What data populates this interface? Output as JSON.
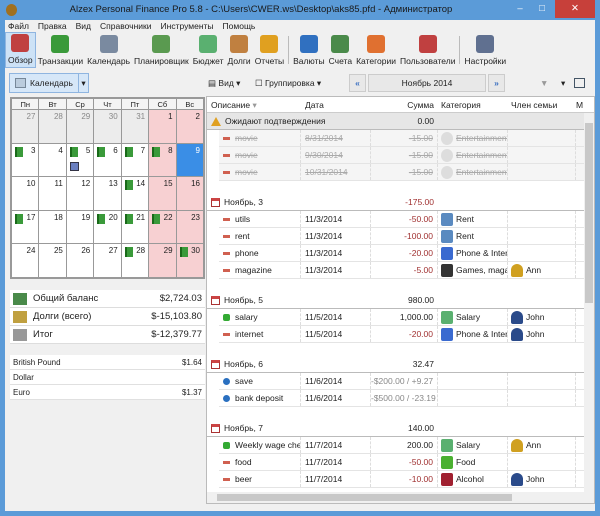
{
  "window": {
    "title": "Alzex Personal Finance Pro 5.8 - C:\\Users\\CWER.ws\\Desktop\\aks85.pfd - Администратор",
    "minimize": "–",
    "maximize": "□",
    "close": "✕"
  },
  "menu": [
    "Файл",
    "Правка",
    "Вид",
    "Справочники",
    "Инструменты",
    "Помощь"
  ],
  "toolbar": [
    {
      "label": "Обзор",
      "icon": "overview-icon",
      "color": "#c04040",
      "active": true
    },
    {
      "label": "Транзакции",
      "icon": "book-icon",
      "color": "#3a9a3a"
    },
    {
      "label": "Календарь",
      "icon": "calendar-icon",
      "color": "#7a8aa0"
    },
    {
      "label": "Планировщик",
      "icon": "clock-icon",
      "color": "#5a9a50"
    },
    {
      "label": "Бюджет",
      "icon": "envelope-icon",
      "color": "#5ab070"
    },
    {
      "label": "Долги",
      "icon": "debt-icon",
      "color": "#c08040"
    },
    {
      "label": "Отчеты",
      "icon": "chart-icon",
      "color": "#e0a020",
      "sep": true
    },
    {
      "label": "Валюты",
      "icon": "currency-icon",
      "color": "#3070c0"
    },
    {
      "label": "Счета",
      "icon": "money-icon",
      "color": "#4a8a4a"
    },
    {
      "label": "Категории",
      "icon": "hierarchy-icon",
      "color": "#e07030"
    },
    {
      "label": "Пользователи",
      "icon": "users-icon",
      "color": "#c04040",
      "sep": true
    },
    {
      "label": "Настройки",
      "icon": "settings-icon",
      "color": "#607090"
    }
  ],
  "subtoolbar": {
    "calendar": "Календарь",
    "view": "Вид",
    "grouping": "Группировка",
    "period": "Ноябрь 2014",
    "prev": "«",
    "next": "»"
  },
  "calendar": {
    "weekdays": [
      "Пн",
      "Вт",
      "Ср",
      "Чт",
      "Пт",
      "Сб",
      "Вс"
    ],
    "weeks": [
      [
        {
          "d": "27",
          "o": 1
        },
        {
          "d": "28",
          "o": 1
        },
        {
          "d": "29",
          "o": 1
        },
        {
          "d": "30",
          "o": 1
        },
        {
          "d": "31",
          "o": 1
        },
        {
          "d": "1",
          "w": 1
        },
        {
          "d": "2",
          "w": 1
        }
      ],
      [
        {
          "d": "3",
          "b": 1
        },
        {
          "d": "4"
        },
        {
          "d": "5",
          "b": 1,
          "s": 1
        },
        {
          "d": "6",
          "b": 1
        },
        {
          "d": "7",
          "b": 1
        },
        {
          "d": "8",
          "w": 1,
          "b": 1
        },
        {
          "d": "9",
          "t": 1
        }
      ],
      [
        {
          "d": "10"
        },
        {
          "d": "11"
        },
        {
          "d": "12"
        },
        {
          "d": "13"
        },
        {
          "d": "14",
          "b": 1
        },
        {
          "d": "15",
          "w": 1
        },
        {
          "d": "16",
          "w": 1
        }
      ],
      [
        {
          "d": "17",
          "b": 1
        },
        {
          "d": "18"
        },
        {
          "d": "19"
        },
        {
          "d": "20",
          "b": 1
        },
        {
          "d": "21",
          "b": 1
        },
        {
          "d": "22",
          "w": 1,
          "b": 1
        },
        {
          "d": "23",
          "w": 1
        }
      ],
      [
        {
          "d": "24"
        },
        {
          "d": "25"
        },
        {
          "d": "26"
        },
        {
          "d": "27"
        },
        {
          "d": "28",
          "b": 1
        },
        {
          "d": "29",
          "w": 1
        },
        {
          "d": "30",
          "w": 1,
          "b": 1
        }
      ]
    ]
  },
  "balance": [
    {
      "label": "Общий баланс",
      "value": "$2,724.03",
      "icon": "money-icon",
      "color": "#4a8a4a"
    },
    {
      "label": "Долги (всего)",
      "value": "$-15,103.80",
      "icon": "debt-icon",
      "color": "#c0a040"
    },
    {
      "label": "Итог",
      "value": "$-12,379.77",
      "icon": "scales-icon",
      "color": "#999"
    }
  ],
  "currencies": [
    {
      "name": "British Pound",
      "value": "$1.64"
    },
    {
      "name": "Dollar",
      "value": ""
    },
    {
      "name": "Euro",
      "value": "$1.37"
    }
  ],
  "grid": {
    "columns": [
      "Описание",
      "Дата",
      "Сумма",
      "Категория",
      "Член семьи",
      "М"
    ],
    "groups": [
      {
        "title": "Ожидают подтверждения",
        "total": "0.00",
        "pending": true,
        "rows": [
          {
            "desc": "movie",
            "date": "8/31/2014",
            "sum": "-15.00",
            "cat": "Entertainment",
            "type": "minus"
          },
          {
            "desc": "movie",
            "date": "9/30/2014",
            "sum": "-15.00",
            "cat": "Entertainment",
            "type": "minus"
          },
          {
            "desc": "movie",
            "date": "10/31/2014",
            "sum": "-15.00",
            "cat": "Entertainment",
            "type": "minus"
          }
        ]
      },
      {
        "title": "Ноябрь, 3",
        "total": "-175.00",
        "rows": [
          {
            "desc": "utils",
            "date": "11/3/2014",
            "sum": "-50.00",
            "cat": "Rent",
            "type": "minus",
            "cc": "#5a8ac0"
          },
          {
            "desc": "rent",
            "date": "11/3/2014",
            "sum": "-100.00",
            "cat": "Rent",
            "type": "minus",
            "cc": "#5a8ac0"
          },
          {
            "desc": "phone",
            "date": "11/3/2014",
            "sum": "-20.00",
            "cat": "Phone & Internet",
            "type": "minus",
            "cc": "#3a6ad0"
          },
          {
            "desc": "magazine",
            "date": "11/3/2014",
            "sum": "-5.00",
            "cat": "Games, magazines",
            "type": "minus",
            "cc": "#333",
            "member": "Ann",
            "mc": "#d0a020"
          }
        ]
      },
      {
        "title": "Ноябрь, 5",
        "total": "980.00",
        "rows": [
          {
            "desc": "salary",
            "date": "11/5/2014",
            "sum": "1,000.00",
            "cat": "Salary",
            "type": "plus",
            "cc": "#5ab070",
            "member": "John",
            "mc": "#2a4a8a"
          },
          {
            "desc": "internet",
            "date": "11/5/2014",
            "sum": "-20.00",
            "cat": "Phone & Internet",
            "type": "minus",
            "cc": "#3a6ad0",
            "member": "John",
            "mc": "#2a4a8a"
          }
        ]
      },
      {
        "title": "Ноябрь, 6",
        "total": "32.47",
        "rows": [
          {
            "desc": "save",
            "date": "11/6/2014",
            "sum": "-$200.00 / +9.27",
            "type": "transfer"
          },
          {
            "desc": "bank deposit",
            "date": "11/6/2014",
            "sum": "-$500.00 / -23.19",
            "type": "transfer"
          }
        ]
      },
      {
        "title": "Ноябрь, 7",
        "total": "140.00",
        "rows": [
          {
            "desc": "Weekly wage check",
            "date": "11/7/2014",
            "sum": "200.00",
            "cat": "Salary",
            "type": "plus",
            "cc": "#5ab070",
            "member": "Ann",
            "mc": "#d0a020"
          },
          {
            "desc": "food",
            "date": "11/7/2014",
            "sum": "-50.00",
            "cat": "Food",
            "type": "minus",
            "cc": "#4ab030",
            "member": "",
            "mc": ""
          },
          {
            "desc": "beer",
            "date": "11/7/2014",
            "sum": "-10.00",
            "cat": "Alcohol",
            "type": "minus",
            "cc": "#a02030",
            "member": "John",
            "mc": "#2a4a8a"
          }
        ]
      }
    ]
  }
}
